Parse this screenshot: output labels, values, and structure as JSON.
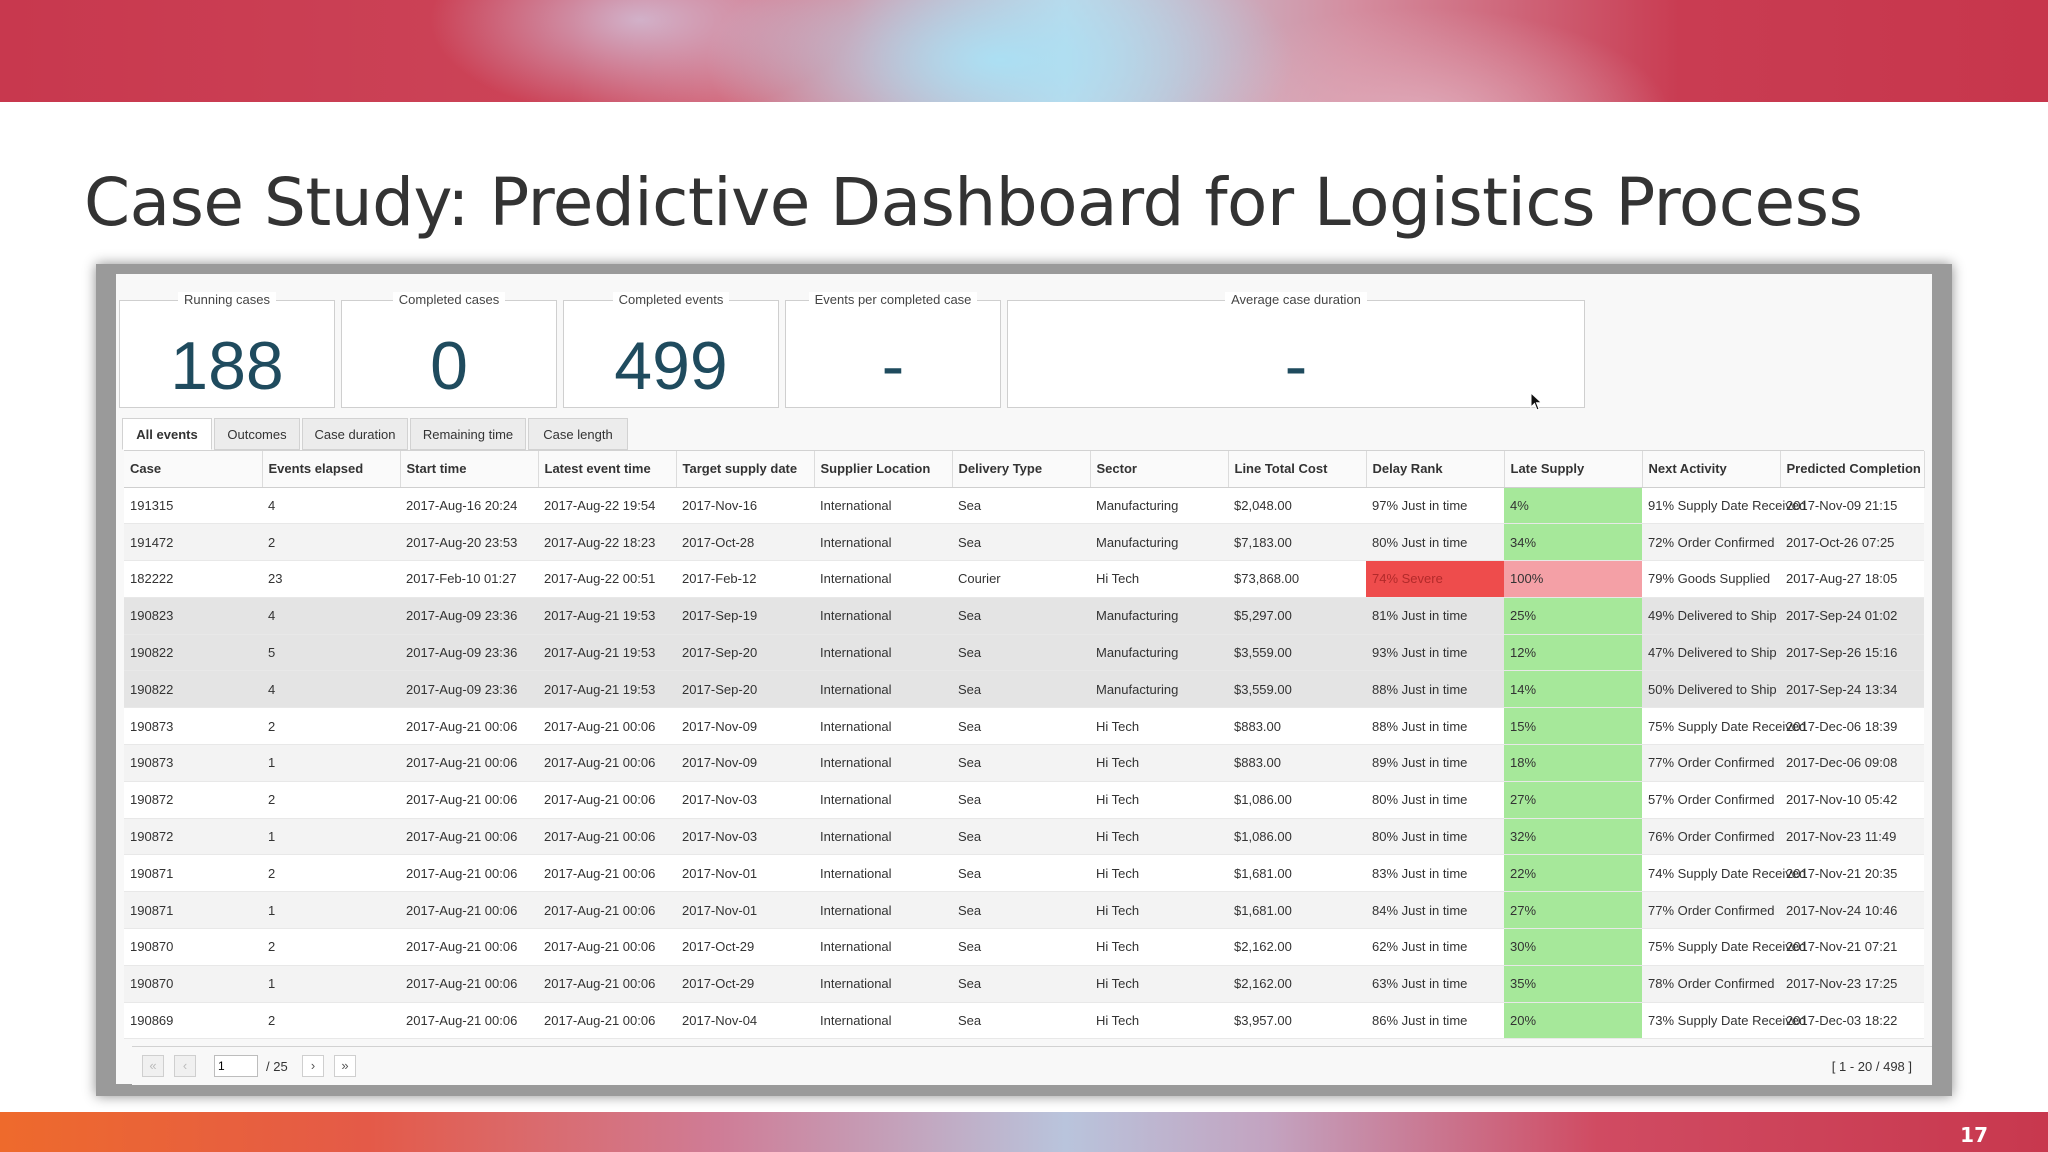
{
  "slide": {
    "title": "Case Study: Predictive Dashboard for Logistics Process",
    "page_number": "17"
  },
  "metrics": [
    {
      "label": "Running cases",
      "value": "188"
    },
    {
      "label": "Completed cases",
      "value": "0"
    },
    {
      "label": "Completed events",
      "value": "499"
    },
    {
      "label": "Events per completed case",
      "value": "-"
    },
    {
      "label": "Average case duration",
      "value": "-"
    }
  ],
  "tabs": [
    {
      "label": "All events",
      "active": true
    },
    {
      "label": "Outcomes",
      "active": false
    },
    {
      "label": "Case duration",
      "active": false
    },
    {
      "label": "Remaining time",
      "active": false
    },
    {
      "label": "Case length",
      "active": false
    }
  ],
  "table": {
    "columns": [
      "Case",
      "Events elapsed",
      "Start time",
      "Latest event time",
      "Target supply date",
      "Supplier Location",
      "Delivery Type",
      "Sector",
      "Line Total Cost",
      "Delay Rank",
      "Late Supply",
      "Next Activity",
      "Predicted Completion"
    ],
    "rows": [
      [
        "191315",
        "4",
        "2017-Aug-16 20:24",
        "2017-Aug-22 19:54",
        "2017-Nov-16",
        "International",
        "Sea",
        "Manufacturing",
        "$2,048.00",
        "97% Just in time",
        "4%",
        "91% Supply Date Received",
        "2017-Nov-09 21:15"
      ],
      [
        "191472",
        "2",
        "2017-Aug-20 23:53",
        "2017-Aug-22 18:23",
        "2017-Oct-28",
        "International",
        "Sea",
        "Manufacturing",
        "$7,183.00",
        "80% Just in time",
        "34%",
        "72% Order Confirmed",
        "2017-Oct-26 07:25"
      ],
      [
        "182222",
        "23",
        "2017-Feb-10 01:27",
        "2017-Aug-22 00:51",
        "2017-Feb-12",
        "International",
        "Courier",
        "Hi Tech",
        "$73,868.00",
        "74% Severe",
        "100%",
        "79% Goods Supplied",
        "2017-Aug-27 18:05"
      ],
      [
        "190823",
        "4",
        "2017-Aug-09 23:36",
        "2017-Aug-21 19:53",
        "2017-Sep-19",
        "International",
        "Sea",
        "Manufacturing",
        "$5,297.00",
        "81% Just in time",
        "25%",
        "49% Delivered to Ship",
        "2017-Sep-24 01:02"
      ],
      [
        "190822",
        "5",
        "2017-Aug-09 23:36",
        "2017-Aug-21 19:53",
        "2017-Sep-20",
        "International",
        "Sea",
        "Manufacturing",
        "$3,559.00",
        "93% Just in time",
        "12%",
        "47% Delivered to Ship",
        "2017-Sep-26 15:16"
      ],
      [
        "190822",
        "4",
        "2017-Aug-09 23:36",
        "2017-Aug-21 19:53",
        "2017-Sep-20",
        "International",
        "Sea",
        "Manufacturing",
        "$3,559.00",
        "88% Just in time",
        "14%",
        "50% Delivered to Ship",
        "2017-Sep-24 13:34"
      ],
      [
        "190873",
        "2",
        "2017-Aug-21 00:06",
        "2017-Aug-21 00:06",
        "2017-Nov-09",
        "International",
        "Sea",
        "Hi Tech",
        "$883.00",
        "88% Just in time",
        "15%",
        "75% Supply Date Received",
        "2017-Dec-06 18:39"
      ],
      [
        "190873",
        "1",
        "2017-Aug-21 00:06",
        "2017-Aug-21 00:06",
        "2017-Nov-09",
        "International",
        "Sea",
        "Hi Tech",
        "$883.00",
        "89% Just in time",
        "18%",
        "77% Order Confirmed",
        "2017-Dec-06 09:08"
      ],
      [
        "190872",
        "2",
        "2017-Aug-21 00:06",
        "2017-Aug-21 00:06",
        "2017-Nov-03",
        "International",
        "Sea",
        "Hi Tech",
        "$1,086.00",
        "80% Just in time",
        "27%",
        "57% Order Confirmed",
        "2017-Nov-10 05:42"
      ],
      [
        "190872",
        "1",
        "2017-Aug-21 00:06",
        "2017-Aug-21 00:06",
        "2017-Nov-03",
        "International",
        "Sea",
        "Hi Tech",
        "$1,086.00",
        "80% Just in time",
        "32%",
        "76% Order Confirmed",
        "2017-Nov-23 11:49"
      ],
      [
        "190871",
        "2",
        "2017-Aug-21 00:06",
        "2017-Aug-21 00:06",
        "2017-Nov-01",
        "International",
        "Sea",
        "Hi Tech",
        "$1,681.00",
        "83% Just in time",
        "22%",
        "74% Supply Date Received",
        "2017-Nov-21 20:35"
      ],
      [
        "190871",
        "1",
        "2017-Aug-21 00:06",
        "2017-Aug-21 00:06",
        "2017-Nov-01",
        "International",
        "Sea",
        "Hi Tech",
        "$1,681.00",
        "84% Just in time",
        "27%",
        "77% Order Confirmed",
        "2017-Nov-24 10:46"
      ],
      [
        "190870",
        "2",
        "2017-Aug-21 00:06",
        "2017-Aug-21 00:06",
        "2017-Oct-29",
        "International",
        "Sea",
        "Hi Tech",
        "$2,162.00",
        "62% Just in time",
        "30%",
        "75% Supply Date Received",
        "2017-Nov-21 07:21"
      ],
      [
        "190870",
        "1",
        "2017-Aug-21 00:06",
        "2017-Aug-21 00:06",
        "2017-Oct-29",
        "International",
        "Sea",
        "Hi Tech",
        "$2,162.00",
        "63% Just in time",
        "35%",
        "78% Order Confirmed",
        "2017-Nov-23 17:25"
      ],
      [
        "190869",
        "2",
        "2017-Aug-21 00:06",
        "2017-Aug-21 00:06",
        "2017-Nov-04",
        "International",
        "Sea",
        "Hi Tech",
        "$3,957.00",
        "86% Just in time",
        "20%",
        "73% Supply Date Received",
        "2017-Dec-03 18:22"
      ]
    ]
  },
  "pager": {
    "first_icon": "double-chevron-left-icon",
    "prev_icon": "chevron-left-icon",
    "next_icon": "chevron-right-icon",
    "last_icon": "double-chevron-right-icon",
    "current_page": "1",
    "total_pages": "/ 25",
    "range": "[ 1 - 20 / 498 ]"
  },
  "colors": {
    "late_supply_low": "#a6e89a",
    "late_supply_high": "#f4a0a6",
    "delay_severe": "#ee4c4c",
    "metric_value": "#1f4b5e"
  }
}
